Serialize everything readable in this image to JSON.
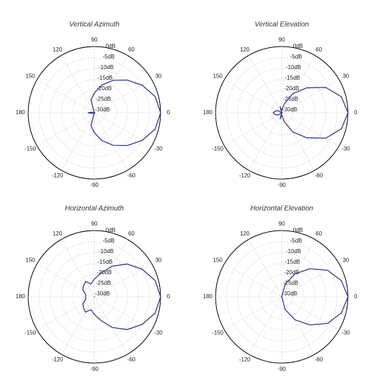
{
  "chart_data": [
    {
      "type": "polar",
      "title": "Vertical Azimuth",
      "x": [
        -180,
        -165,
        -150,
        -135,
        -120,
        -105,
        -90,
        -75,
        -60,
        -45,
        -30,
        -15,
        0,
        15,
        30,
        45,
        60,
        75,
        90,
        105,
        120,
        135,
        150,
        165,
        180
      ],
      "values": [
        -27,
        -29,
        -30,
        -30,
        -30,
        -24,
        -21,
        -17,
        -13,
        -9,
        -5,
        -1.5,
        0,
        -1.5,
        -5,
        -9,
        -13,
        -17,
        -21,
        -24,
        -30,
        -30,
        -30,
        -29,
        -27
      ],
      "color": "#2e3b8f",
      "xticks": [
        0,
        30,
        60,
        90,
        120,
        150,
        180,
        -150,
        -120,
        -90,
        -60,
        -30
      ],
      "ylim": [
        -30,
        0
      ],
      "yticks": [
        {
          "value": 0,
          "label": "0dB"
        },
        {
          "value": -5,
          "label": "-5dB"
        },
        {
          "value": -10,
          "label": "-10dB"
        },
        {
          "value": -15,
          "label": "-15dB"
        },
        {
          "value": -20,
          "label": "-20dB"
        },
        {
          "value": -25,
          "label": "-25dB"
        },
        {
          "value": -30,
          "label": "-30dB"
        }
      ]
    },
    {
      "type": "polar",
      "title": "Vertical Elevation",
      "x": [
        -180,
        -165,
        -150,
        -135,
        -120,
        -105,
        -90,
        -75,
        -60,
        -45,
        -30,
        -15,
        0,
        15,
        30,
        45,
        60,
        75,
        90,
        105,
        120,
        135,
        150,
        165,
        180
      ],
      "values": [
        -26,
        -27,
        -28,
        -30,
        -30,
        -27,
        -29,
        -26,
        -20,
        -14,
        -7,
        -2,
        0,
        -2,
        -7,
        -14,
        -20,
        -26,
        -29,
        -27,
        -30,
        -30,
        -28,
        -27,
        -26
      ],
      "color": "#2e3b8f",
      "xticks": [
        0,
        30,
        60,
        90,
        120,
        150,
        180,
        -150,
        -120,
        -90,
        -60,
        -30
      ],
      "ylim": [
        -30,
        0
      ],
      "yticks": [
        {
          "value": 0,
          "label": "0dB"
        },
        {
          "value": -5,
          "label": "-5dB"
        },
        {
          "value": -10,
          "label": "-10dB"
        },
        {
          "value": -15,
          "label": "-15dB"
        },
        {
          "value": -20,
          "label": "-20dB"
        },
        {
          "value": -25,
          "label": "-25dB"
        },
        {
          "value": -30,
          "label": "-30dB"
        }
      ]
    },
    {
      "type": "polar",
      "title": "Horizontal Azimuth",
      "x": [
        -180,
        -165,
        -150,
        -135,
        -120,
        -105,
        -90,
        -75,
        -60,
        -45,
        -30,
        -15,
        0,
        15,
        30,
        45,
        60,
        75,
        90,
        105,
        120,
        135,
        150,
        165,
        180
      ],
      "values": [
        -26,
        -26,
        -24,
        -23,
        -22,
        -24,
        -22,
        -19,
        -14,
        -9,
        -5,
        -1.5,
        0,
        -1.5,
        -5,
        -9,
        -14,
        -19,
        -22,
        -24,
        -22,
        -23,
        -24,
        -26,
        -26
      ],
      "color": "#2e3b8f",
      "xticks": [
        0,
        30,
        60,
        90,
        120,
        150,
        180,
        -150,
        -120,
        -90,
        -60,
        -30
      ],
      "ylim": [
        -30,
        0
      ],
      "yticks": [
        {
          "value": 0,
          "label": "0dB"
        },
        {
          "value": -5,
          "label": "-5dB"
        },
        {
          "value": -10,
          "label": "-10dB"
        },
        {
          "value": -15,
          "label": "-15dB"
        },
        {
          "value": -20,
          "label": "-20dB"
        },
        {
          "value": -25,
          "label": "-25dB"
        },
        {
          "value": -30,
          "label": "-30dB"
        }
      ]
    },
    {
      "type": "polar",
      "title": "Horizontal Elevation",
      "x": [
        -180,
        -165,
        -150,
        -135,
        -120,
        -105,
        -90,
        -75,
        -60,
        -45,
        -30,
        -15,
        0,
        15,
        30,
        45,
        60,
        75,
        90,
        105,
        120,
        135,
        150,
        165,
        180
      ],
      "values": [
        -30,
        -30,
        -30,
        -30,
        -30,
        -30,
        -30,
        -24,
        -18,
        -12,
        -6,
        -2,
        0,
        -2,
        -6,
        -12,
        -18,
        -24,
        -30,
        -30,
        -30,
        -30,
        -30,
        -30,
        -30
      ],
      "color": "#2e3b8f",
      "xticks": [
        0,
        30,
        60,
        90,
        120,
        150,
        180,
        -150,
        -120,
        -90,
        -60,
        -30
      ],
      "ylim": [
        -30,
        0
      ],
      "yticks": [
        {
          "value": 0,
          "label": "0dB"
        },
        {
          "value": -5,
          "label": "-5dB"
        },
        {
          "value": -10,
          "label": "-10dB"
        },
        {
          "value": -15,
          "label": "-15dB"
        },
        {
          "value": -20,
          "label": "-20dB"
        },
        {
          "value": -25,
          "label": "-25dB"
        },
        {
          "value": -30,
          "label": "-30dB"
        }
      ]
    }
  ]
}
